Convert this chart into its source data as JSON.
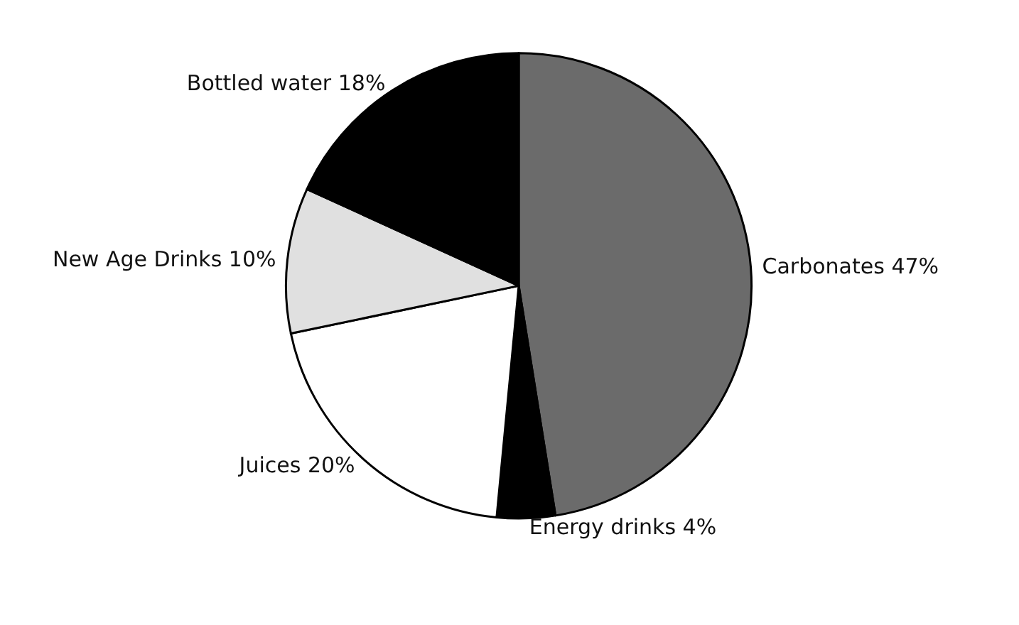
{
  "chart_data": {
    "type": "pie",
    "categories": [
      "Carbonates",
      "Energy drinks",
      "Juices",
      "New Age Drinks",
      "Bottled water"
    ],
    "values": [
      47,
      4,
      20,
      10,
      18
    ],
    "value_labels": [
      "47%",
      "4%",
      "20%",
      "10%",
      "18%"
    ],
    "colors": [
      "#6b6b6b",
      "#000000",
      "#ffffff",
      "#e0e0e0",
      "#000000"
    ],
    "legend": false
  }
}
